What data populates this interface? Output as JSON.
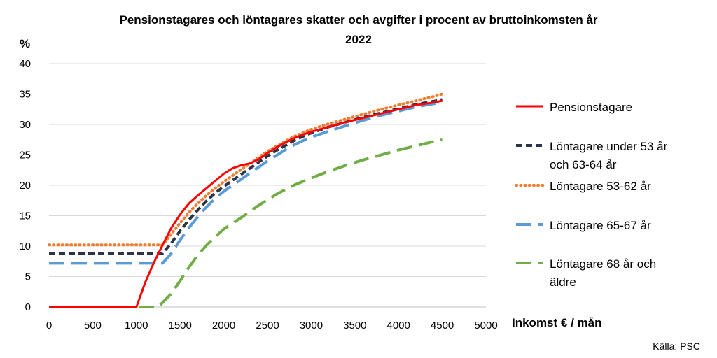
{
  "chart_data": {
    "type": "line",
    "title": "Pensionstagares och löntagares skatter och avgifter i procent av bruttoinkomsten år",
    "title_line2": "2022",
    "ylabel": "%",
    "xlabel": "Inkomst € / mån",
    "source": "Källa: PSC",
    "xlim": [
      0,
      5000
    ],
    "ylim": [
      0,
      40
    ],
    "x_ticks": [
      "0",
      "500",
      "1000",
      "1500",
      "2000",
      "2500",
      "3000",
      "3500",
      "4000",
      "4500",
      "5000"
    ],
    "y_ticks": [
      "0",
      "5",
      "10",
      "15",
      "20",
      "25",
      "30",
      "35",
      "40"
    ],
    "grid": true,
    "legend_position": "right",
    "series": [
      {
        "name": "Pensionstagare",
        "legend_lines": [
          "Pensionstagare"
        ],
        "color": "#ff0000",
        "style": "solid",
        "points": [
          [
            0,
            0
          ],
          [
            1000,
            0
          ],
          [
            1100,
            4
          ],
          [
            1200,
            7.3
          ],
          [
            1300,
            10.2
          ],
          [
            1400,
            13
          ],
          [
            1500,
            15.2
          ],
          [
            1600,
            17
          ],
          [
            1700,
            18.3
          ],
          [
            1800,
            19.5
          ],
          [
            1900,
            20.7
          ],
          [
            2000,
            21.9
          ],
          [
            2100,
            22.8
          ],
          [
            2200,
            23.3
          ],
          [
            2300,
            23.6
          ],
          [
            2400,
            24.3
          ],
          [
            2500,
            25.3
          ],
          [
            2600,
            26.2
          ],
          [
            2700,
            27
          ],
          [
            2800,
            27.7
          ],
          [
            2900,
            28.3
          ],
          [
            3000,
            28.8
          ],
          [
            3200,
            29.6
          ],
          [
            3400,
            30.4
          ],
          [
            3600,
            31.1
          ],
          [
            3800,
            31.8
          ],
          [
            4000,
            32.5
          ],
          [
            4200,
            33.2
          ],
          [
            4400,
            33.6
          ],
          [
            4500,
            33.9
          ]
        ]
      },
      {
        "name": "Löntagare under 53 år och 63-64 år",
        "legend_lines": [
          "Löntagare under 53 år",
          "och 63-64 år"
        ],
        "color": "#2e3447",
        "style": "dash",
        "points": [
          [
            0,
            8.8
          ],
          [
            1300,
            8.8
          ],
          [
            1400,
            10.5
          ],
          [
            1500,
            12.5
          ],
          [
            1600,
            14.3
          ],
          [
            1700,
            15.9
          ],
          [
            1800,
            17.4
          ],
          [
            1900,
            18.7
          ],
          [
            2000,
            19.8
          ],
          [
            2100,
            20.8
          ],
          [
            2200,
            21.8
          ],
          [
            2300,
            22.8
          ],
          [
            2400,
            23.8
          ],
          [
            2500,
            24.8
          ],
          [
            2600,
            25.7
          ],
          [
            2700,
            26.5
          ],
          [
            2800,
            27.3
          ],
          [
            2900,
            28
          ],
          [
            3000,
            28.6
          ],
          [
            3200,
            29.6
          ],
          [
            3400,
            30.4
          ],
          [
            3600,
            31.2
          ],
          [
            3800,
            31.9
          ],
          [
            4000,
            32.6
          ],
          [
            4200,
            33.3
          ],
          [
            4400,
            33.8
          ],
          [
            4500,
            34.1
          ]
        ]
      },
      {
        "name": "Löntagare 53-62 år",
        "legend_lines": [
          "Löntagare 53-62 år"
        ],
        "color": "#ed7d31",
        "style": "dot",
        "points": [
          [
            0,
            10.2
          ],
          [
            1300,
            10.2
          ],
          [
            1400,
            12
          ],
          [
            1500,
            13.8
          ],
          [
            1600,
            15.5
          ],
          [
            1700,
            17
          ],
          [
            1800,
            18.3
          ],
          [
            1900,
            19.5
          ],
          [
            2000,
            20.6
          ],
          [
            2100,
            21.6
          ],
          [
            2200,
            22.6
          ],
          [
            2300,
            23.6
          ],
          [
            2400,
            24.6
          ],
          [
            2500,
            25.6
          ],
          [
            2600,
            26.4
          ],
          [
            2700,
            27.2
          ],
          [
            2800,
            28
          ],
          [
            2900,
            28.6
          ],
          [
            3000,
            29.2
          ],
          [
            3200,
            30.1
          ],
          [
            3400,
            30.9
          ],
          [
            3600,
            31.7
          ],
          [
            3800,
            32.5
          ],
          [
            4000,
            33.2
          ],
          [
            4200,
            33.9
          ],
          [
            4400,
            34.6
          ],
          [
            4500,
            35
          ]
        ]
      },
      {
        "name": "Löntagare 65-67 år",
        "legend_lines": [
          "Löntagare 65-67 år"
        ],
        "color": "#5b9bd5",
        "style": "longdash",
        "points": [
          [
            0,
            7.2
          ],
          [
            1300,
            7.2
          ],
          [
            1400,
            8.8
          ],
          [
            1500,
            11
          ],
          [
            1600,
            13
          ],
          [
            1700,
            14.8
          ],
          [
            1800,
            16.4
          ],
          [
            1900,
            17.8
          ],
          [
            2000,
            19
          ],
          [
            2100,
            20
          ],
          [
            2200,
            21
          ],
          [
            2300,
            22
          ],
          [
            2400,
            23
          ],
          [
            2500,
            24
          ],
          [
            2600,
            24.9
          ],
          [
            2700,
            25.8
          ],
          [
            2800,
            26.6
          ],
          [
            2900,
            27.3
          ],
          [
            3000,
            27.9
          ],
          [
            3200,
            28.9
          ],
          [
            3400,
            29.8
          ],
          [
            3600,
            30.7
          ],
          [
            3800,
            31.5
          ],
          [
            4000,
            32.2
          ],
          [
            4200,
            32.9
          ],
          [
            4400,
            33.4
          ],
          [
            4500,
            33.6
          ]
        ]
      },
      {
        "name": "Löntagare 68 år och äldre",
        "legend_lines": [
          "Löntagare 68 år och",
          "äldre"
        ],
        "color": "#70ad47",
        "style": "longdash",
        "points": [
          [
            0,
            0
          ],
          [
            1250,
            0
          ],
          [
            1400,
            2.2
          ],
          [
            1500,
            4.3
          ],
          [
            1600,
            6.5
          ],
          [
            1700,
            8.5
          ],
          [
            1800,
            10.1
          ],
          [
            1900,
            11.5
          ],
          [
            2000,
            12.8
          ],
          [
            2200,
            14.7
          ],
          [
            2400,
            16.7
          ],
          [
            2600,
            18.5
          ],
          [
            2800,
            20
          ],
          [
            3000,
            21.2
          ],
          [
            3200,
            22.3
          ],
          [
            3400,
            23.3
          ],
          [
            3600,
            24.2
          ],
          [
            3800,
            25
          ],
          [
            4000,
            25.8
          ],
          [
            4200,
            26.5
          ],
          [
            4400,
            27.2
          ],
          [
            4500,
            27.5
          ]
        ]
      }
    ]
  }
}
